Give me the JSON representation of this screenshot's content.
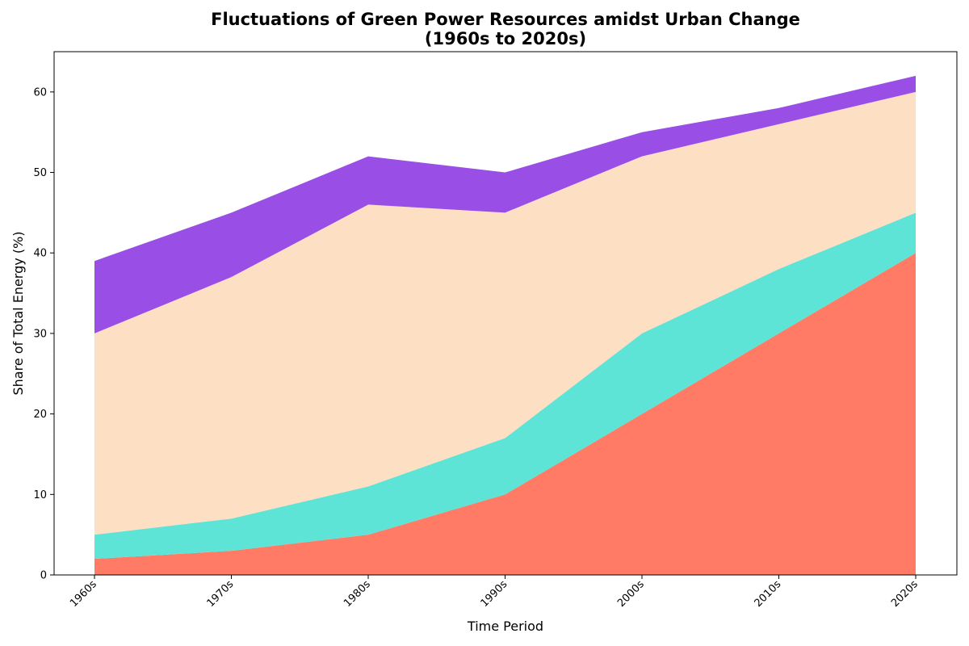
{
  "chart_data": {
    "type": "area",
    "stacked": true,
    "title_line1": "Fluctuations of Green Power Resources amidst Urban Change",
    "title_line2": "(1960s to 2020s)",
    "xlabel": "Time Period",
    "ylabel": "Share of Total Energy (%)",
    "categories": [
      "1960s",
      "1970s",
      "1980s",
      "1990s",
      "2000s",
      "2010s",
      "2020s"
    ],
    "ylim": [
      0,
      65
    ],
    "yticks": [
      0,
      10,
      20,
      30,
      40,
      50,
      60
    ],
    "grid": false,
    "legend": "none",
    "series": [
      {
        "color": "#ff7b66",
        "values": [
          2,
          3,
          5,
          10,
          20,
          30,
          40
        ]
      },
      {
        "color": "#5ee4d6",
        "values": [
          3,
          4,
          6,
          7,
          10,
          8,
          5
        ]
      },
      {
        "color": "#fddfc4",
        "values": [
          25,
          30,
          35,
          28,
          22,
          18,
          15
        ]
      },
      {
        "color": "#994fe5",
        "values": [
          9,
          8,
          6,
          5,
          3,
          2,
          2
        ]
      }
    ]
  }
}
